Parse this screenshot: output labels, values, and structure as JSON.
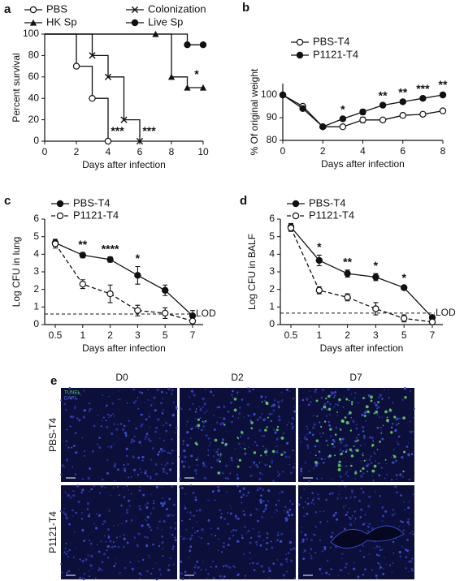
{
  "chart_data": [
    {
      "type": "step",
      "panel_label": "a",
      "xlabel": "Days after infection",
      "ylabel": "Percent survival",
      "xlim": [
        0,
        10
      ],
      "xticks": [
        0,
        2,
        4,
        6,
        8,
        10
      ],
      "ylim": [
        0,
        100
      ],
      "yticks": [
        0,
        20,
        40,
        60,
        80,
        100
      ],
      "legend": "top",
      "series": [
        {
          "name": "PBS",
          "color": "#111111",
          "marker": "circle-open",
          "x": [
            0,
            2,
            3,
            4
          ],
          "values": [
            100,
            70,
            40,
            0
          ]
        },
        {
          "name": "Colonization",
          "color": "#111111",
          "marker": "x",
          "x": [
            0,
            3,
            4,
            5,
            6
          ],
          "values": [
            100,
            80,
            60,
            20,
            0
          ]
        },
        {
          "name": "HK Sp",
          "color": "#111111",
          "marker": "triangle",
          "x": [
            0,
            7,
            8,
            9,
            10
          ],
          "values": [
            100,
            100,
            60,
            50,
            50
          ]
        },
        {
          "name": "Live Sp",
          "color": "#111111",
          "marker": "circle",
          "x": [
            0,
            9,
            10
          ],
          "values": [
            100,
            90,
            90
          ]
        }
      ],
      "annotations": [
        {
          "text": "***",
          "x": 5,
          "y": 9
        },
        {
          "text": "***",
          "x": 7,
          "y": 9
        },
        {
          "text": "*",
          "x": 10,
          "y": 62
        }
      ]
    },
    {
      "type": "line",
      "panel_label": "b",
      "xlabel": "Days after infection",
      "ylabel": "% Of original weight",
      "xlim": [
        0,
        8
      ],
      "xticks": [
        0,
        2,
        4,
        6,
        8
      ],
      "ylim": [
        80,
        105
      ],
      "yticks": [
        80,
        90,
        100
      ],
      "legend": "top",
      "x": [
        0,
        1,
        2,
        3,
        4,
        5,
        6,
        7,
        8
      ],
      "series": [
        {
          "name": "PBS-T4",
          "color": "#111111",
          "marker": "circle-open",
          "values": [
            100,
            95,
            86,
            86,
            89,
            89,
            91,
            91.5,
            93
          ],
          "errors": [
            0.5,
            0.8,
            0.8,
            0.5,
            1.2,
            0.5,
            1,
            0.5,
            0.5
          ]
        },
        {
          "name": "P1121-T4",
          "color": "#111111",
          "marker": "circle",
          "values": [
            100,
            94,
            86,
            89.5,
            92.5,
            95.5,
            97,
            98.5,
            100
          ],
          "errors": [
            0.5,
            0.6,
            0.8,
            0.6,
            1.2,
            0.6,
            0.6,
            0.6,
            1
          ]
        }
      ],
      "annotations": [
        {
          "text": "*",
          "x": 3
        },
        {
          "text": "**",
          "x": 5
        },
        {
          "text": "**",
          "x": 6
        },
        {
          "text": "***",
          "x": 7
        },
        {
          "text": "**",
          "x": 8
        }
      ]
    },
    {
      "type": "line",
      "panel_label": "c",
      "xlabel": "Days after infection",
      "ylabel": "Log CFU in lung",
      "categories": [
        "0.5",
        "1",
        "2",
        "3",
        "5",
        "7"
      ],
      "ylim": [
        0,
        6
      ],
      "yticks": [
        0,
        1,
        2,
        3,
        4,
        5,
        6
      ],
      "legend": "top",
      "reference_line": {
        "value": 0.6,
        "label": "LOD"
      },
      "series": [
        {
          "name": "PBS-T4",
          "color": "#111111",
          "marker": "circle",
          "dashed": false,
          "values": [
            4.65,
            3.95,
            3.7,
            2.8,
            1.95,
            0.5
          ],
          "errors": [
            0.2,
            0.15,
            0.15,
            0.5,
            0.3,
            0.3
          ]
        },
        {
          "name": "P1121-T4",
          "color": "#111111",
          "marker": "circle-open",
          "dashed": true,
          "values": [
            4.6,
            2.3,
            1.75,
            0.8,
            0.65,
            0.2
          ],
          "errors": [
            0.25,
            0.25,
            0.5,
            0.3,
            0.3,
            0.2
          ]
        }
      ],
      "annotations": [
        {
          "text": "**",
          "x": 1
        },
        {
          "text": "****",
          "x": 2
        },
        {
          "text": "*",
          "x": 3
        }
      ]
    },
    {
      "type": "line",
      "panel_label": "d",
      "xlabel": "Days after infection",
      "ylabel": "Log CFU in BALF",
      "categories": [
        "0.5",
        "1",
        "2",
        "3",
        "5",
        "7"
      ],
      "ylim": [
        0,
        6
      ],
      "yticks": [
        0,
        1,
        2,
        3,
        4,
        5,
        6
      ],
      "legend": "top",
      "reference_line": {
        "value": 0.65,
        "label": "LOD"
      },
      "series": [
        {
          "name": "PBS-T4",
          "color": "#111111",
          "marker": "circle",
          "dashed": false,
          "values": [
            5.55,
            3.65,
            2.9,
            2.7,
            2.1,
            0.4
          ],
          "errors": [
            0.2,
            0.3,
            0.2,
            0.2,
            0.1,
            0.15
          ]
        },
        {
          "name": "P1121-T4",
          "color": "#111111",
          "marker": "circle-open",
          "dashed": true,
          "values": [
            5.5,
            1.95,
            1.55,
            0.9,
            0.35,
            0.15
          ],
          "errors": [
            0.2,
            0.2,
            0.2,
            0.35,
            0.2,
            0.1
          ]
        }
      ],
      "annotations": [
        {
          "text": "*",
          "x": 1
        },
        {
          "text": "**",
          "x": 2
        },
        {
          "text": "*",
          "x": 3
        },
        {
          "text": "*",
          "x": 4
        }
      ]
    }
  ],
  "panel_e": {
    "label": "e",
    "columns": [
      "D0",
      "D2",
      "D7"
    ],
    "rows": [
      "PBS-T4",
      "P1121-T4"
    ],
    "stains": [
      "TUNEL",
      "DAPI"
    ]
  }
}
